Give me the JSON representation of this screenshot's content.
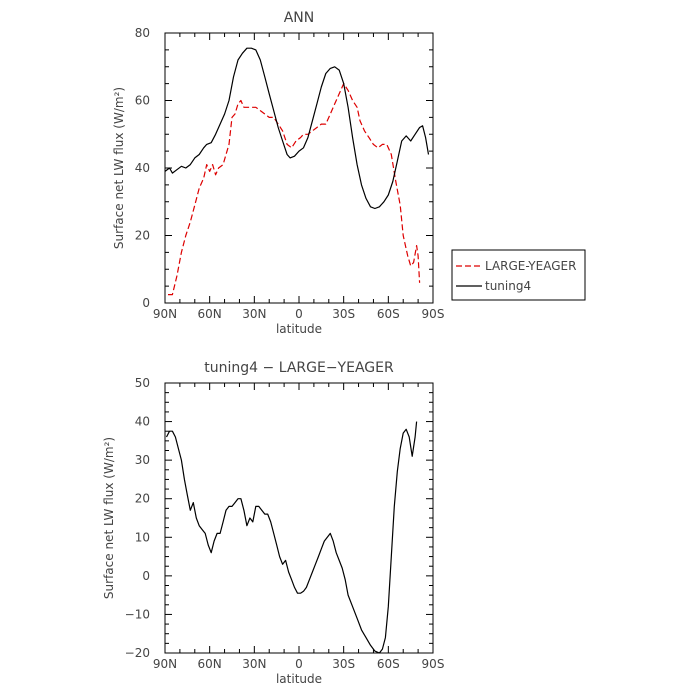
{
  "chart_data": [
    {
      "type": "line",
      "title": "ANN",
      "xlabel": "latitude",
      "ylabel": "Surface net LW flux (W/m²)",
      "xlim": [
        90,
        -90
      ],
      "ylim": [
        0,
        80
      ],
      "xticks": [
        90,
        60,
        30,
        0,
        -30,
        -60,
        -90
      ],
      "xtick_labels": [
        "90N",
        "60N",
        "30N",
        "0",
        "30S",
        "60S",
        "90S"
      ],
      "yticks": [
        0,
        20,
        40,
        60,
        80
      ],
      "ytick_labels": [
        "0",
        "20",
        "40",
        "60",
        "80"
      ],
      "legend_position": "right",
      "series": [
        {
          "name": "LARGE-YEAGER",
          "color": "#dd0000",
          "dash": "dashed",
          "points": [
            [
              88,
              2.5
            ],
            [
              85,
              2.5
            ],
            [
              82,
              8
            ],
            [
              79,
              15
            ],
            [
              76,
              20
            ],
            [
              73,
              24
            ],
            [
              70,
              29
            ],
            [
              67,
              34
            ],
            [
              64,
              37
            ],
            [
              62,
              41
            ],
            [
              60,
              39
            ],
            [
              58,
              41
            ],
            [
              56,
              38
            ],
            [
              54,
              40
            ],
            [
              51,
              41
            ],
            [
              49,
              44
            ],
            [
              47,
              47
            ],
            [
              45,
              55
            ],
            [
              43,
              56
            ],
            [
              41,
              59
            ],
            [
              39,
              60
            ],
            [
              37,
              58
            ],
            [
              35,
              58
            ],
            [
              32,
              58
            ],
            [
              29,
              58
            ],
            [
              26,
              57
            ],
            [
              23,
              56
            ],
            [
              20,
              55
            ],
            [
              17,
              55
            ],
            [
              14,
              53
            ],
            [
              11,
              51
            ],
            [
              8,
              47
            ],
            [
              5,
              46
            ],
            [
              2,
              48
            ],
            [
              -1,
              49
            ],
            [
              -3,
              50
            ],
            [
              -6,
              50
            ],
            [
              -9,
              51
            ],
            [
              -12,
              52
            ],
            [
              -15,
              53
            ],
            [
              -18,
              53
            ],
            [
              -21,
              56
            ],
            [
              -24,
              59
            ],
            [
              -27,
              62
            ],
            [
              -30,
              65
            ],
            [
              -33,
              63
            ],
            [
              -36,
              60
            ],
            [
              -39,
              58
            ],
            [
              -41,
              54
            ],
            [
              -44,
              51
            ],
            [
              -47,
              49
            ],
            [
              -50,
              47
            ],
            [
              -53,
              46
            ],
            [
              -56,
              47
            ],
            [
              -59,
              47
            ],
            [
              -62,
              44
            ],
            [
              -65,
              36
            ],
            [
              -68,
              29
            ],
            [
              -70,
              20
            ],
            [
              -73,
              14
            ],
            [
              -75,
              11
            ],
            [
              -77,
              12
            ],
            [
              -79,
              17
            ],
            [
              -80,
              14
            ],
            [
              -81,
              6
            ]
          ]
        },
        {
          "name": "tuning4",
          "color": "#000000",
          "dash": "solid",
          "points": [
            [
              90,
              39
            ],
            [
              87,
              40
            ],
            [
              85,
              38.5
            ],
            [
              82,
              39.5
            ],
            [
              79,
              40.5
            ],
            [
              76,
              40
            ],
            [
              73,
              41
            ],
            [
              70,
              43
            ],
            [
              67,
              44
            ],
            [
              64,
              46
            ],
            [
              62,
              47
            ],
            [
              59,
              47.5
            ],
            [
              56,
              50
            ],
            [
              53,
              53
            ],
            [
              50,
              56
            ],
            [
              47,
              60
            ],
            [
              44,
              67
            ],
            [
              41,
              72
            ],
            [
              38,
              74
            ],
            [
              35,
              75.5
            ],
            [
              32,
              75.5
            ],
            [
              29,
              75
            ],
            [
              26,
              72
            ],
            [
              23,
              67
            ],
            [
              20,
              62
            ],
            [
              17,
              57
            ],
            [
              14,
              52
            ],
            [
              11,
              48
            ],
            [
              8,
              44
            ],
            [
              6,
              43
            ],
            [
              3,
              43.5
            ],
            [
              0,
              45
            ],
            [
              -3,
              46
            ],
            [
              -6,
              49
            ],
            [
              -9,
              54
            ],
            [
              -12,
              59
            ],
            [
              -15,
              64
            ],
            [
              -18,
              68
            ],
            [
              -21,
              69.5
            ],
            [
              -24,
              70
            ],
            [
              -27,
              69
            ],
            [
              -30,
              65
            ],
            [
              -33,
              58
            ],
            [
              -36,
              49
            ],
            [
              -39,
              41
            ],
            [
              -42,
              35
            ],
            [
              -45,
              31
            ],
            [
              -48,
              28.5
            ],
            [
              -51,
              28
            ],
            [
              -54,
              28.5
            ],
            [
              -57,
              30
            ],
            [
              -60,
              32
            ],
            [
              -63,
              36
            ],
            [
              -66,
              42
            ],
            [
              -69,
              48
            ],
            [
              -72,
              49.5
            ],
            [
              -75,
              48
            ],
            [
              -78,
              50
            ],
            [
              -81,
              52
            ],
            [
              -83,
              52.5
            ],
            [
              -85,
              49
            ],
            [
              -87,
              44
            ]
          ]
        }
      ]
    },
    {
      "type": "line",
      "title": "tuning4 − LARGE−YEAGER",
      "xlabel": "latitude",
      "ylabel": "Surface net LW flux (W/m²)",
      "xlim": [
        90,
        -90
      ],
      "ylim": [
        -20,
        50
      ],
      "xticks": [
        90,
        60,
        30,
        0,
        -30,
        -60,
        -90
      ],
      "xtick_labels": [
        "90N",
        "60N",
        "30N",
        "0",
        "30S",
        "60S",
        "90S"
      ],
      "yticks": [
        -20,
        -10,
        0,
        10,
        20,
        30,
        40,
        50
      ],
      "ytick_labels": [
        "−20",
        "−10",
        "0",
        "10",
        "20",
        "30",
        "40",
        "50"
      ],
      "series": [
        {
          "color": "#000000",
          "dash": "solid",
          "points": [
            [
              89,
              36
            ],
            [
              87,
              37.5
            ],
            [
              85,
              37.5
            ],
            [
              83,
              36
            ],
            [
              81,
              33
            ],
            [
              79,
              30
            ],
            [
              77,
              25
            ],
            [
              75,
              21
            ],
            [
              73,
              17
            ],
            [
              71,
              19
            ],
            [
              69,
              15
            ],
            [
              67,
              13
            ],
            [
              65,
              12
            ],
            [
              63,
              11
            ],
            [
              61,
              8
            ],
            [
              59,
              6
            ],
            [
              57,
              9
            ],
            [
              55,
              11
            ],
            [
              53,
              11
            ],
            [
              51,
              14
            ],
            [
              49,
              17
            ],
            [
              47,
              18
            ],
            [
              45,
              18
            ],
            [
              43,
              19
            ],
            [
              41,
              20
            ],
            [
              39,
              20
            ],
            [
              37,
              17
            ],
            [
              35,
              13
            ],
            [
              33,
              15
            ],
            [
              31,
              14
            ],
            [
              29,
              18
            ],
            [
              27,
              18
            ],
            [
              25,
              17
            ],
            [
              23,
              16
            ],
            [
              21,
              16
            ],
            [
              19,
              14
            ],
            [
              17,
              11
            ],
            [
              15,
              8
            ],
            [
              13,
              5
            ],
            [
              11,
              3
            ],
            [
              9,
              4
            ],
            [
              7,
              1
            ],
            [
              5,
              -1
            ],
            [
              3,
              -3
            ],
            [
              1,
              -4.5
            ],
            [
              -1,
              -4.5
            ],
            [
              -3,
              -4
            ],
            [
              -5,
              -3
            ],
            [
              -7,
              -1
            ],
            [
              -9,
              1
            ],
            [
              -11,
              3
            ],
            [
              -13,
              5
            ],
            [
              -15,
              7
            ],
            [
              -17,
              9
            ],
            [
              -19,
              10
            ],
            [
              -21,
              11
            ],
            [
              -23,
              9
            ],
            [
              -25,
              6
            ],
            [
              -27,
              4
            ],
            [
              -29,
              2
            ],
            [
              -31,
              -1
            ],
            [
              -33,
              -5
            ],
            [
              -36,
              -8
            ],
            [
              -39,
              -11
            ],
            [
              -42,
              -14
            ],
            [
              -45,
              -16
            ],
            [
              -48,
              -18
            ],
            [
              -51,
              -19.5
            ],
            [
              -54,
              -20
            ],
            [
              -56,
              -19
            ],
            [
              -58,
              -16
            ],
            [
              -60,
              -8
            ],
            [
              -62,
              5
            ],
            [
              -64,
              18
            ],
            [
              -66,
              27
            ],
            [
              -68,
              33
            ],
            [
              -70,
              37
            ],
            [
              -72,
              38
            ],
            [
              -74,
              36
            ],
            [
              -76,
              31
            ],
            [
              -78,
              36
            ],
            [
              -79,
              40
            ]
          ]
        }
      ]
    }
  ]
}
